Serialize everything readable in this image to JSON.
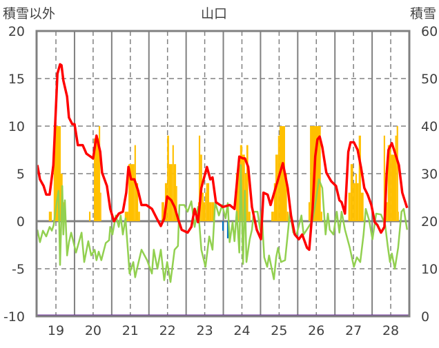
{
  "chart_data": {
    "type": "bar+line",
    "title": "山口",
    "ylabel_left": "積雪以外",
    "ylabel_right": "積雪",
    "xlim": [
      18.48,
      28.5
    ],
    "ylim_left": [
      -10,
      20
    ],
    "ylim_right": [
      0,
      60
    ],
    "yticks_left": [
      "20",
      "15",
      "10",
      "5",
      "0",
      "-5",
      "-10"
    ],
    "yticks_left_values": [
      20,
      15,
      10,
      5,
      0,
      -5,
      -10
    ],
    "yticks_right": [
      "60",
      "50",
      "40",
      "30",
      "20",
      "10",
      "0"
    ],
    "yticks_right_values": [
      60,
      50,
      40,
      30,
      20,
      10,
      0
    ],
    "xticks": [
      "19",
      "20",
      "21",
      "22",
      "23",
      "24",
      "25",
      "26",
      "27",
      "28"
    ],
    "xticks_values": [
      19,
      20,
      21,
      22,
      23,
      24,
      25,
      26,
      27,
      28
    ],
    "grid": true,
    "colors": {
      "bars": "#FFC000",
      "neg_bars": "#0070C0",
      "red": "#FF0000",
      "green": "#92D050",
      "snow": "#7030A0",
      "frame": "#808080"
    },
    "bars": [
      [
        18.81,
        18.89,
        1
      ],
      [
        18.94,
        19.13,
        10
      ],
      [
        19.13,
        19.18,
        5
      ],
      [
        19.18,
        19.22,
        2
      ],
      [
        19.89,
        19.93,
        1
      ],
      [
        20.02,
        20.15,
        8.7
      ],
      [
        20.15,
        20.19,
        10
      ],
      [
        20.19,
        20.22,
        3
      ],
      [
        20.85,
        20.95,
        1
      ],
      [
        20.95,
        21.11,
        6
      ],
      [
        21.11,
        21.15,
        8
      ],
      [
        21.15,
        21.21,
        4
      ],
      [
        21.21,
        21.26,
        1
      ],
      [
        21.84,
        21.91,
        2
      ],
      [
        21.93,
        21.99,
        4
      ],
      [
        21.99,
        22.04,
        9
      ],
      [
        22.04,
        22.13,
        6
      ],
      [
        22.13,
        22.17,
        8
      ],
      [
        22.17,
        22.23,
        6
      ],
      [
        22.23,
        22.26,
        3.7
      ],
      [
        22.82,
        22.84,
        2
      ],
      [
        22.84,
        22.88,
        9
      ],
      [
        22.88,
        22.93,
        7
      ],
      [
        22.93,
        22.97,
        3
      ],
      [
        22.97,
        23.01,
        2
      ],
      [
        23.01,
        23.04,
        3
      ],
      [
        23.04,
        23.12,
        4
      ],
      [
        23.12,
        23.19,
        2
      ],
      [
        23.19,
        23.25,
        2
      ],
      [
        23.84,
        23.9,
        5
      ],
      [
        23.9,
        23.95,
        6
      ],
      [
        23.95,
        24.01,
        8
      ],
      [
        24.01,
        24.08,
        7
      ],
      [
        24.08,
        24.12,
        5
      ],
      [
        24.12,
        24.17,
        8
      ],
      [
        24.17,
        24.23,
        1
      ],
      [
        24.79,
        24.86,
        1
      ],
      [
        24.86,
        24.9,
        4
      ],
      [
        24.9,
        24.97,
        7
      ],
      [
        24.97,
        25.01,
        9
      ],
      [
        25.01,
        25.16,
        10
      ],
      [
        25.16,
        25.21,
        5
      ],
      [
        25.21,
        25.25,
        1
      ],
      [
        25.79,
        25.83,
        2
      ],
      [
        25.83,
        26.12,
        10
      ],
      [
        26.12,
        26.16,
        1
      ],
      [
        26.86,
        26.92,
        3
      ],
      [
        26.92,
        26.99,
        6
      ],
      [
        26.99,
        27.05,
        4
      ],
      [
        27.05,
        27.09,
        5
      ],
      [
        27.09,
        27.14,
        4
      ],
      [
        27.14,
        27.2,
        9
      ],
      [
        27.2,
        27.27,
        3
      ],
      [
        27.81,
        27.85,
        9
      ],
      [
        27.85,
        27.92,
        2
      ],
      [
        27.92,
        28.01,
        8
      ],
      [
        28.01,
        28.12,
        7
      ],
      [
        28.12,
        28.16,
        9
      ],
      [
        28.16,
        28.2,
        10
      ],
      [
        28.2,
        28.22,
        1
      ]
    ],
    "neg_bars": [
      [
        23.47,
        23.51,
        -1
      ],
      [
        23.6,
        23.64,
        -1.8
      ]
    ],
    "red": [
      [
        18.5,
        5.9
      ],
      [
        18.57,
        4.4
      ],
      [
        18.67,
        3.7
      ],
      [
        18.74,
        2.8
      ],
      [
        18.83,
        2.8
      ],
      [
        18.93,
        5.9
      ],
      [
        19.04,
        15.5
      ],
      [
        19.11,
        16.5
      ],
      [
        19.15,
        16.4
      ],
      [
        19.2,
        14.8
      ],
      [
        19.3,
        13.1
      ],
      [
        19.35,
        10.9
      ],
      [
        19.44,
        10.2
      ],
      [
        19.5,
        10.2
      ],
      [
        19.59,
        8.0
      ],
      [
        19.72,
        8.0
      ],
      [
        19.82,
        7.1
      ],
      [
        20.0,
        6.6
      ],
      [
        20.09,
        9.0
      ],
      [
        20.19,
        7.3
      ],
      [
        20.24,
        5.1
      ],
      [
        20.37,
        3.7
      ],
      [
        20.46,
        1.3
      ],
      [
        20.56,
        0
      ],
      [
        20.69,
        0.8
      ],
      [
        20.8,
        1.0
      ],
      [
        20.89,
        3.0
      ],
      [
        20.95,
        5.7
      ],
      [
        21.02,
        4.4
      ],
      [
        21.11,
        4.4
      ],
      [
        21.21,
        3.2
      ],
      [
        21.3,
        1.7
      ],
      [
        21.43,
        1.7
      ],
      [
        21.58,
        1.3
      ],
      [
        21.71,
        0.3
      ],
      [
        21.82,
        -0.5
      ],
      [
        21.91,
        0.3
      ],
      [
        21.99,
        2.6
      ],
      [
        22.1,
        2.2
      ],
      [
        22.19,
        1.5
      ],
      [
        22.28,
        0.3
      ],
      [
        22.38,
        -0.9
      ],
      [
        22.54,
        -1.2
      ],
      [
        22.64,
        -0.6
      ],
      [
        22.73,
        1.3
      ],
      [
        22.82,
        -0.1
      ],
      [
        22.91,
        3.5
      ],
      [
        23.06,
        5.7
      ],
      [
        23.15,
        4.4
      ],
      [
        23.21,
        4.6
      ],
      [
        23.3,
        2.0
      ],
      [
        23.49,
        1.5
      ],
      [
        23.67,
        1.7
      ],
      [
        23.8,
        1.3
      ],
      [
        23.93,
        6.8
      ],
      [
        24.03,
        6.6
      ],
      [
        24.08,
        6.6
      ],
      [
        24.17,
        5.7
      ],
      [
        24.27,
        1.5
      ],
      [
        24.4,
        -0.9
      ],
      [
        24.51,
        -1.9
      ],
      [
        24.58,
        3.0
      ],
      [
        24.69,
        2.8
      ],
      [
        24.77,
        1.7
      ],
      [
        24.92,
        3.7
      ],
      [
        25.1,
        6.1
      ],
      [
        25.23,
        3.5
      ],
      [
        25.32,
        0.6
      ],
      [
        25.42,
        -1.4
      ],
      [
        25.53,
        -1.9
      ],
      [
        25.62,
        -1.4
      ],
      [
        25.75,
        -2.8
      ],
      [
        25.81,
        -3.0
      ],
      [
        25.9,
        1.3
      ],
      [
        25.97,
        6.8
      ],
      [
        26.03,
        8.6
      ],
      [
        26.09,
        8.9
      ],
      [
        26.16,
        7.8
      ],
      [
        26.27,
        5.1
      ],
      [
        26.4,
        4.2
      ],
      [
        26.53,
        3.7
      ],
      [
        26.62,
        2.2
      ],
      [
        26.68,
        2.0
      ],
      [
        26.77,
        0.8
      ],
      [
        26.86,
        7.3
      ],
      [
        26.92,
        8.3
      ],
      [
        27.01,
        8.3
      ],
      [
        27.11,
        7.5
      ],
      [
        27.2,
        5.7
      ],
      [
        27.29,
        3.5
      ],
      [
        27.38,
        2.8
      ],
      [
        27.48,
        1.7
      ],
      [
        27.57,
        -0.1
      ],
      [
        27.64,
        -0.4
      ],
      [
        27.74,
        -1.2
      ],
      [
        27.83,
        -0.6
      ],
      [
        27.89,
        4.9
      ],
      [
        27.94,
        7.5
      ],
      [
        28.03,
        8.2
      ],
      [
        28.13,
        7.0
      ],
      [
        28.22,
        5.9
      ],
      [
        28.31,
        3.0
      ],
      [
        28.44,
        1.4
      ]
    ],
    "green": [
      [
        18.5,
        -0.9
      ],
      [
        18.57,
        -2.2
      ],
      [
        18.65,
        -1.0
      ],
      [
        18.74,
        -1.6
      ],
      [
        18.83,
        -0.6
      ],
      [
        18.89,
        -1.0
      ],
      [
        18.94,
        -0.4
      ],
      [
        19.02,
        2.0
      ],
      [
        19.07,
        3.2
      ],
      [
        19.11,
        -4.6
      ],
      [
        19.17,
        3.7
      ],
      [
        19.2,
        -1.4
      ],
      [
        19.24,
        2.2
      ],
      [
        19.3,
        -3.6
      ],
      [
        19.35,
        -2.2
      ],
      [
        19.41,
        -1.2
      ],
      [
        19.54,
        -3.3
      ],
      [
        19.69,
        -1.2
      ],
      [
        19.76,
        -4.3
      ],
      [
        19.87,
        -2.1
      ],
      [
        19.95,
        -3.6
      ],
      [
        20.04,
        -3.0
      ],
      [
        20.09,
        -4.1
      ],
      [
        20.15,
        -3.2
      ],
      [
        20.22,
        -4.1
      ],
      [
        20.34,
        -2.3
      ],
      [
        20.43,
        -2.0
      ],
      [
        20.46,
        -0.6
      ],
      [
        20.52,
        -1.4
      ],
      [
        20.61,
        0.6
      ],
      [
        20.69,
        -0.6
      ],
      [
        20.74,
        0.6
      ],
      [
        20.8,
        -1.4
      ],
      [
        20.87,
        0.3
      ],
      [
        20.93,
        -2.8
      ],
      [
        20.98,
        -5.5
      ],
      [
        21.08,
        -4.3
      ],
      [
        21.13,
        -5.9
      ],
      [
        21.21,
        -4.5
      ],
      [
        21.3,
        -3.0
      ],
      [
        21.45,
        -4.1
      ],
      [
        21.58,
        -5.5
      ],
      [
        21.63,
        -3.0
      ],
      [
        21.73,
        -5.0
      ],
      [
        21.82,
        -3.0
      ],
      [
        21.91,
        -6.2
      ],
      [
        21.99,
        -4.3
      ],
      [
        22.08,
        -6.4
      ],
      [
        22.19,
        -3.0
      ],
      [
        22.28,
        -2.6
      ],
      [
        22.32,
        1.7
      ],
      [
        22.45,
        1.7
      ],
      [
        22.54,
        1.0
      ],
      [
        22.64,
        2.1
      ],
      [
        22.73,
        -0.6
      ],
      [
        22.82,
        1.5
      ],
      [
        22.91,
        -3.0
      ],
      [
        23.02,
        -4.8
      ],
      [
        23.12,
        -1.6
      ],
      [
        23.21,
        -3.0
      ],
      [
        23.28,
        2.0
      ],
      [
        23.38,
        0.6
      ],
      [
        23.47,
        1.7
      ],
      [
        23.56,
        0.3
      ],
      [
        23.62,
        1.9
      ],
      [
        23.67,
        -2.2
      ],
      [
        23.75,
        -0.1
      ],
      [
        23.8,
        -2.1
      ],
      [
        23.86,
        1.0
      ],
      [
        23.93,
        -3.3
      ],
      [
        23.97,
        5.9
      ],
      [
        24.03,
        -4.5
      ],
      [
        24.08,
        3.2
      ],
      [
        24.12,
        -4.3
      ],
      [
        24.21,
        -1.9
      ],
      [
        24.27,
        -0.9
      ],
      [
        24.32,
        1.0
      ],
      [
        24.42,
        1.0
      ],
      [
        24.49,
        -0.9
      ],
      [
        24.53,
        1.0
      ],
      [
        24.6,
        -3.8
      ],
      [
        24.68,
        -4.8
      ],
      [
        24.73,
        -3.6
      ],
      [
        24.79,
        -4.8
      ],
      [
        24.86,
        -6.1
      ],
      [
        24.92,
        -3.8
      ],
      [
        24.97,
        -2.8
      ],
      [
        25.05,
        -4.3
      ],
      [
        25.16,
        -4.1
      ],
      [
        25.23,
        -1.4
      ],
      [
        25.29,
        1.0
      ],
      [
        25.38,
        -1.2
      ],
      [
        25.47,
        -1.4
      ],
      [
        25.6,
        0.6
      ],
      [
        25.66,
        -1.4
      ],
      [
        25.79,
        -0.6
      ],
      [
        25.9,
        0.1
      ],
      [
        25.99,
        2.2
      ],
      [
        26.07,
        4.4
      ],
      [
        26.16,
        3.5
      ],
      [
        26.25,
        -1.4
      ],
      [
        26.31,
        0.8
      ],
      [
        26.36,
        -0.9
      ],
      [
        26.46,
        -1.4
      ],
      [
        26.55,
        1.0
      ],
      [
        26.62,
        -1.2
      ],
      [
        26.68,
        1.0
      ],
      [
        26.77,
        -0.9
      ],
      [
        26.9,
        -2.8
      ],
      [
        27.01,
        -4.8
      ],
      [
        27.09,
        -3.8
      ],
      [
        27.18,
        -4.3
      ],
      [
        27.27,
        -1.4
      ],
      [
        27.33,
        1.3
      ],
      [
        27.42,
        0.1
      ],
      [
        27.51,
        -1.9
      ],
      [
        27.61,
        0.8
      ],
      [
        27.74,
        0.7
      ],
      [
        27.85,
        -0.4
      ],
      [
        27.92,
        -2.6
      ],
      [
        27.98,
        -4.3
      ],
      [
        28.03,
        -3.4
      ],
      [
        28.11,
        -5.0
      ],
      [
        28.2,
        -2.8
      ],
      [
        28.29,
        1.0
      ],
      [
        28.35,
        1.3
      ],
      [
        28.44,
        -0.9
      ]
    ],
    "snow_depth": [
      [
        18.48,
        0
      ],
      [
        28.5,
        0
      ]
    ]
  }
}
